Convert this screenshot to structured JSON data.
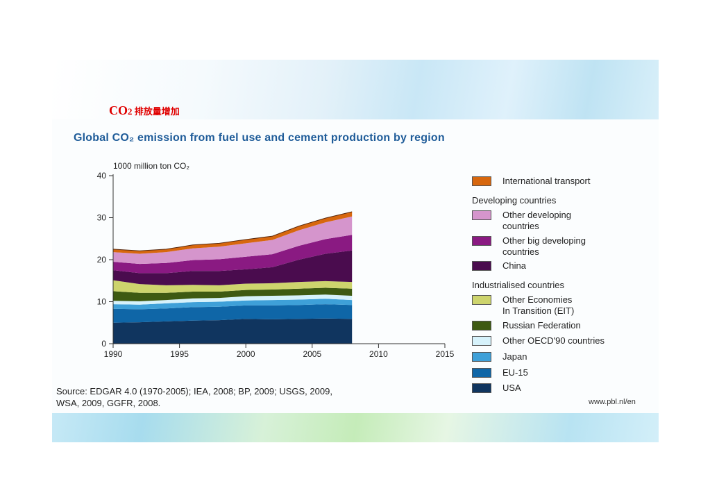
{
  "slide_title": {
    "co": "CO",
    "rest": "2 排放量增加"
  },
  "chart_title": "Global CO₂ emission from fuel use and cement production by region",
  "unit_label": "1000 million ton CO₂",
  "source": "Source: EDGAR 4.0 (1970-2005); IEA, 2008; BP, 2009; USGS, 2009,\n            WSA, 2009, GGFR, 2008.",
  "url": "www.pbl.nl/en",
  "legend": {
    "headers": {
      "developing": "Developing countries",
      "industrialised": "Industrialised countries"
    },
    "items": [
      {
        "key": "intl",
        "label": "International transport",
        "color": "#d7670e"
      },
      {
        "key": "odev",
        "label": "Other developing\ncountries",
        "color": "#d595cc"
      },
      {
        "key": "obig",
        "label": "Other big developing\ncountries",
        "color": "#8a1a82"
      },
      {
        "key": "china",
        "label": "China",
        "color": "#4a0c4e"
      },
      {
        "key": "eit",
        "label": "Other Economies\nIn Transition (EIT)",
        "color": "#cdd46d"
      },
      {
        "key": "rus",
        "label": "Russian Federation",
        "color": "#3e5a12"
      },
      {
        "key": "oecd",
        "label": "Other OECD'90 countries",
        "color": "#d6f2fb"
      },
      {
        "key": "japan",
        "label": "Japan",
        "color": "#3ea0d8"
      },
      {
        "key": "eu15",
        "label": "EU-15",
        "color": "#0f66a7"
      },
      {
        "key": "usa",
        "label": "USA",
        "color": "#10355f"
      }
    ]
  },
  "chart_data": {
    "type": "area",
    "stacked": true,
    "title": "Global CO₂ emission from fuel use and cement production by region",
    "ylabel": "1000 million ton CO₂",
    "xlim": [
      1990,
      2015
    ],
    "ylim": [
      0,
      40
    ],
    "xticks": [
      1990,
      1995,
      2000,
      2005,
      2010,
      2015
    ],
    "yticks": [
      0,
      10,
      20,
      30,
      40
    ],
    "x": [
      1990,
      1992,
      1994,
      1996,
      1998,
      2000,
      2002,
      2004,
      2006,
      2008
    ],
    "series": [
      {
        "name": "USA",
        "color": "#10355f",
        "values": [
          5.0,
          5.1,
          5.3,
          5.5,
          5.6,
          5.9,
          5.8,
          5.9,
          6.0,
          5.9
        ]
      },
      {
        "name": "EU-15",
        "color": "#0f66a7",
        "values": [
          3.3,
          3.1,
          3.1,
          3.2,
          3.2,
          3.2,
          3.3,
          3.3,
          3.4,
          3.3
        ]
      },
      {
        "name": "Japan",
        "color": "#3ea0d8",
        "values": [
          1.1,
          1.1,
          1.2,
          1.2,
          1.2,
          1.2,
          1.3,
          1.3,
          1.3,
          1.2
        ]
      },
      {
        "name": "Other OECD'90 countries",
        "color": "#d6f2fb",
        "values": [
          0.8,
          0.8,
          0.8,
          0.9,
          0.9,
          1.0,
          1.0,
          1.0,
          1.0,
          1.0
        ]
      },
      {
        "name": "Russian Federation",
        "color": "#3e5a12",
        "values": [
          2.3,
          2.0,
          1.7,
          1.6,
          1.5,
          1.5,
          1.5,
          1.6,
          1.6,
          1.7
        ]
      },
      {
        "name": "Other Economies In Transition (EIT)",
        "color": "#cdd46d",
        "values": [
          2.6,
          2.1,
          1.8,
          1.6,
          1.5,
          1.5,
          1.5,
          1.6,
          1.6,
          1.6
        ]
      },
      {
        "name": "China",
        "color": "#4a0c4e",
        "values": [
          2.4,
          2.6,
          2.9,
          3.3,
          3.4,
          3.4,
          3.8,
          5.3,
          6.5,
          7.5
        ]
      },
      {
        "name": "Other big developing countries",
        "color": "#8a1a82",
        "values": [
          2.0,
          2.2,
          2.4,
          2.6,
          2.8,
          3.0,
          3.1,
          3.3,
          3.5,
          3.7
        ]
      },
      {
        "name": "Other developing countries",
        "color": "#d595cc",
        "values": [
          2.3,
          2.4,
          2.6,
          2.8,
          3.0,
          3.2,
          3.4,
          3.7,
          4.0,
          4.4
        ]
      },
      {
        "name": "International transport",
        "color": "#d7670e",
        "values": [
          0.7,
          0.7,
          0.7,
          0.8,
          0.8,
          0.9,
          0.9,
          1.0,
          1.0,
          1.1
        ]
      }
    ]
  }
}
